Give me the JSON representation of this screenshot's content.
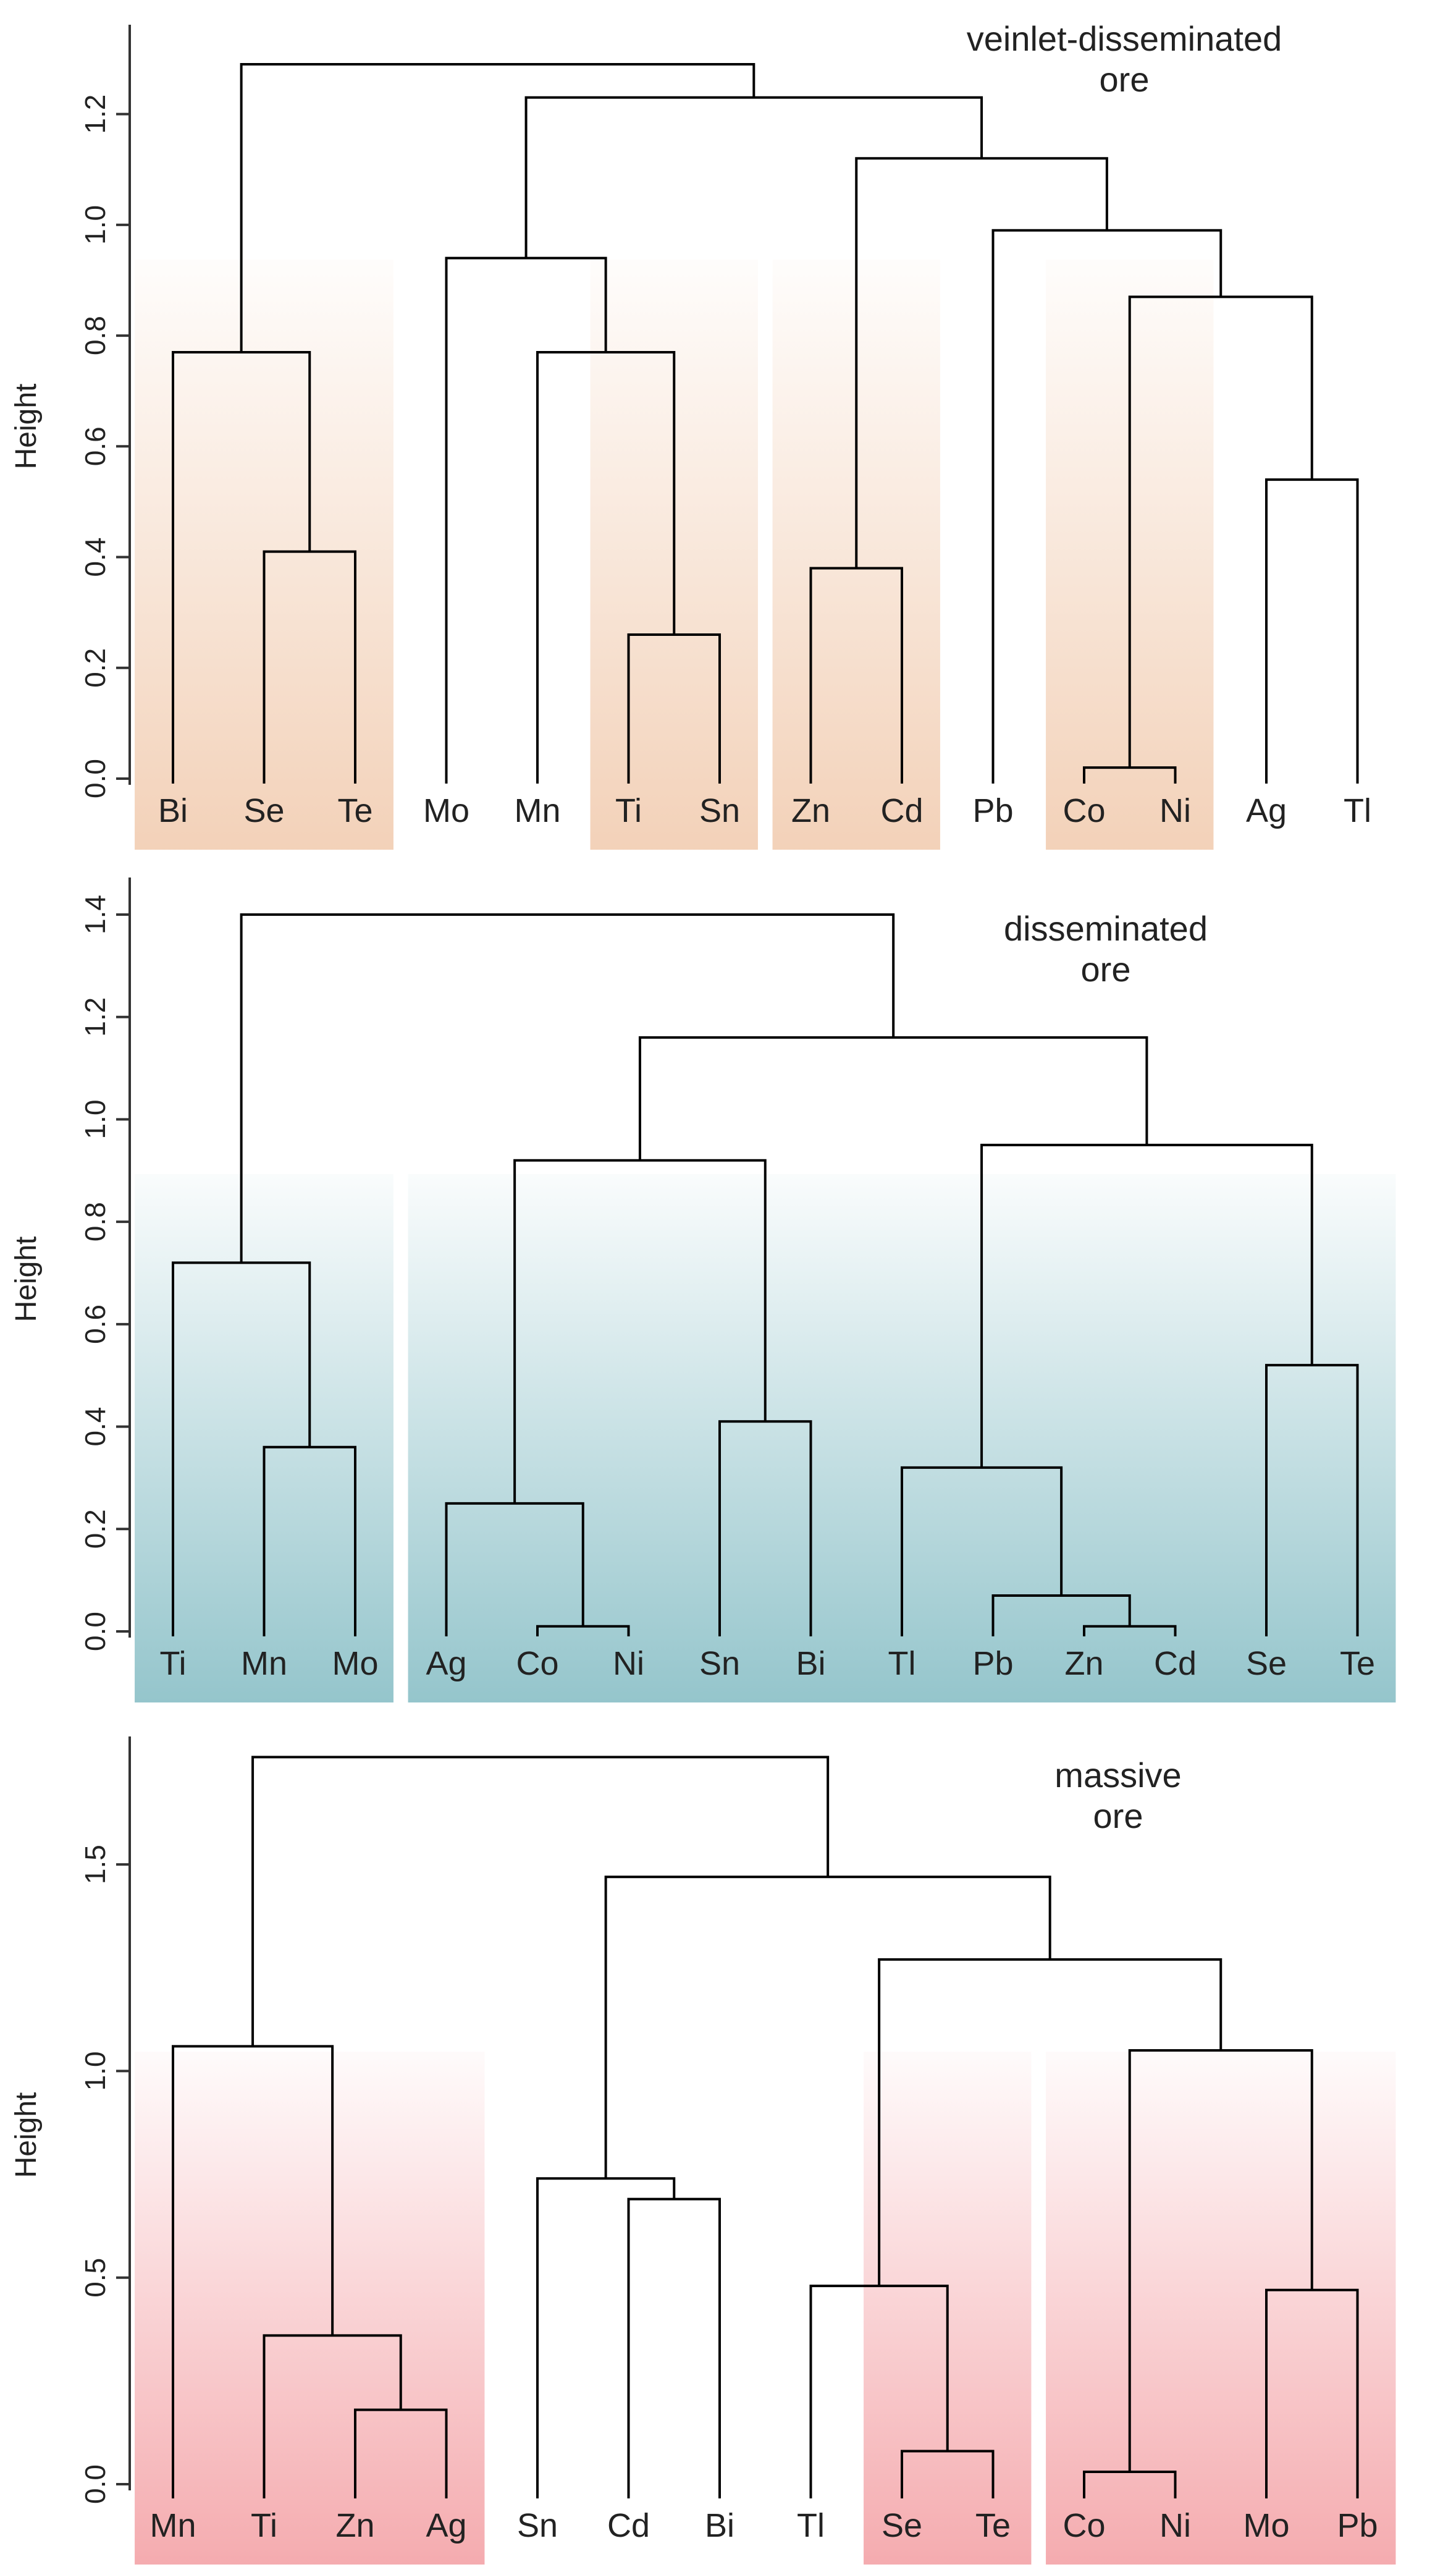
{
  "colors": {
    "veinlet_shade": "#f2cfb5",
    "disseminated_shade": "#8fc2c9",
    "massive_shade": "#f4a7ab",
    "line": "#000000",
    "axis": "#333333"
  },
  "chart_data": [
    {
      "type": "dendrogram",
      "title_lines": [
        "veinlet-disseminated",
        "ore"
      ],
      "ylabel": "Height",
      "xlabel": "",
      "ylim": [
        0,
        1.3
      ],
      "yticks": [
        "0.0",
        "0.2",
        "0.4",
        "0.6",
        "0.8",
        "1.0",
        "1.2"
      ],
      "leaves": [
        "Bi",
        "Se",
        "Te",
        "Mo",
        "Mn",
        "Ti",
        "Sn",
        "Zn",
        "Cd",
        "Pb",
        "Co",
        "Ni",
        "Ag",
        "Tl"
      ],
      "merges": [
        {
          "left": "Co",
          "right": "Ni",
          "height": 0.02
        },
        {
          "left": "Ti",
          "right": "Sn",
          "height": 0.26
        },
        {
          "left": "Zn",
          "right": "Cd",
          "height": 0.38
        },
        {
          "left": "Se",
          "right": "Te",
          "height": 0.41
        },
        {
          "left": "Ag",
          "right": "Tl",
          "height": 0.54
        },
        {
          "left": "Bi",
          "right": "(Se,Te)",
          "height": 0.77
        },
        {
          "left": "Mn",
          "right": "(Ti,Sn)",
          "height": 0.77
        },
        {
          "left": "(Co,Ni)",
          "right": "(Ag,Tl)",
          "height": 0.87
        },
        {
          "left": "Mo",
          "right": "(Mn,Ti,Sn)",
          "height": 0.94
        },
        {
          "left": "Pb",
          "right": "(Co,Ni,Ag,Tl)",
          "height": 0.99
        },
        {
          "left": "(Zn,Cd)",
          "right": "(Pb,Co,Ni,Ag,Tl)",
          "height": 1.12
        },
        {
          "left": "(Mo,Mn,Ti,Sn)",
          "right": "(Zn,Cd,Pb,Co,Ni,Ag,Tl)",
          "height": 1.23
        },
        {
          "left": "(Bi,Se,Te)",
          "right": "(Mo..Tl)",
          "height": 1.29
        }
      ],
      "shaded_groups": [
        [
          "Bi",
          "Se",
          "Te"
        ],
        [
          "Ti",
          "Sn"
        ],
        [
          "Zn",
          "Cd"
        ],
        [
          "Co",
          "Ni"
        ]
      ]
    },
    {
      "type": "dendrogram",
      "title_lines": [
        "disseminated",
        "ore"
      ],
      "ylabel": "Height",
      "xlabel": "",
      "ylim": [
        0,
        1.4
      ],
      "yticks": [
        "0.0",
        "0.2",
        "0.4",
        "0.6",
        "0.8",
        "1.0",
        "1.2",
        "1.4"
      ],
      "leaves": [
        "Ti",
        "Mn",
        "Mo",
        "Ag",
        "Co",
        "Ni",
        "Sn",
        "Bi",
        "Tl",
        "Pb",
        "Zn",
        "Cd",
        "Se",
        "Te"
      ],
      "merges": [
        {
          "left": "Co",
          "right": "Ni",
          "height": 0.01
        },
        {
          "left": "Zn",
          "right": "Cd",
          "height": 0.01
        },
        {
          "left": "Pb",
          "right": "(Zn,Cd)",
          "height": 0.07
        },
        {
          "left": "Ag",
          "right": "(Co,Ni)",
          "height": 0.25
        },
        {
          "left": "Tl",
          "right": "(Pb,Zn,Cd)",
          "height": 0.32
        },
        {
          "left": "Mn",
          "right": "Mo",
          "height": 0.36
        },
        {
          "left": "Sn",
          "right": "Bi",
          "height": 0.41
        },
        {
          "left": "Se",
          "right": "Te",
          "height": 0.52
        },
        {
          "left": "Ti",
          "right": "(Mn,Mo)",
          "height": 0.72
        },
        {
          "left": "(Ag,Co,Ni)",
          "right": "(Sn,Bi)",
          "height": 0.92
        },
        {
          "left": "(Tl,Pb,Zn,Cd)",
          "right": "(Se,Te)",
          "height": 0.95
        },
        {
          "left": "(Ag,Co,Ni,Sn,Bi)",
          "right": "(Tl,Pb,Zn,Cd,Se,Te)",
          "height": 1.16
        },
        {
          "left": "(Ti,Mn,Mo)",
          "right": "(Ag..Te)",
          "height": 1.4
        }
      ],
      "shaded_groups": [
        [
          "Ti",
          "Mn",
          "Mo"
        ],
        [
          "Ag",
          "Co",
          "Ni",
          "Sn",
          "Bi",
          "Tl",
          "Pb",
          "Zn",
          "Cd",
          "Se",
          "Te"
        ]
      ]
    },
    {
      "type": "dendrogram",
      "title_lines": [
        "massive",
        "ore"
      ],
      "ylabel": "Height",
      "xlabel": "",
      "ylim": [
        0,
        1.75
      ],
      "yticks": [
        "0.0",
        "0.5",
        "1.0",
        "1.5"
      ],
      "ytick_values": [
        0,
        0.5,
        1.0,
        1.5
      ],
      "leaves": [
        "Mn",
        "Ti",
        "Zn",
        "Ag",
        "Sn",
        "Cd",
        "Bi",
        "Tl",
        "Se",
        "Te",
        "Co",
        "Ni",
        "Mo",
        "Pb"
      ],
      "merges": [
        {
          "left": "Co",
          "right": "Ni",
          "height": 0.03
        },
        {
          "left": "Se",
          "right": "Te",
          "height": 0.08
        },
        {
          "left": "Zn",
          "right": "Ag",
          "height": 0.18
        },
        {
          "left": "Ti",
          "right": "(Zn,Ag)",
          "height": 0.36
        },
        {
          "left": "Mo",
          "right": "Pb",
          "height": 0.47
        },
        {
          "left": "Tl",
          "right": "(Se,Te)",
          "height": 0.48
        },
        {
          "left": "Cd",
          "right": "Bi",
          "height": 0.69
        },
        {
          "left": "Sn",
          "right": "(Cd,Bi)",
          "height": 0.74
        },
        {
          "left": "(Co,Ni)",
          "right": "(Mo,Pb)",
          "height": 1.05
        },
        {
          "left": "Mn",
          "right": "(Ti,Zn,Ag)",
          "height": 1.06
        },
        {
          "left": "(Tl,Se,Te)",
          "right": "(Co,Ni,Mo,Pb)",
          "height": 1.27
        },
        {
          "left": "(Sn,Cd,Bi)",
          "right": "(Tl..Pb)",
          "height": 1.47
        },
        {
          "left": "(Mn,Ti,Zn,Ag)",
          "right": "(Sn..Pb)",
          "height": 1.76
        }
      ],
      "shaded_groups": [
        [
          "Mn",
          "Ti",
          "Zn",
          "Ag"
        ],
        [
          "Se",
          "Te"
        ],
        [
          "Co",
          "Ni",
          "Mo",
          "Pb"
        ]
      ]
    }
  ]
}
